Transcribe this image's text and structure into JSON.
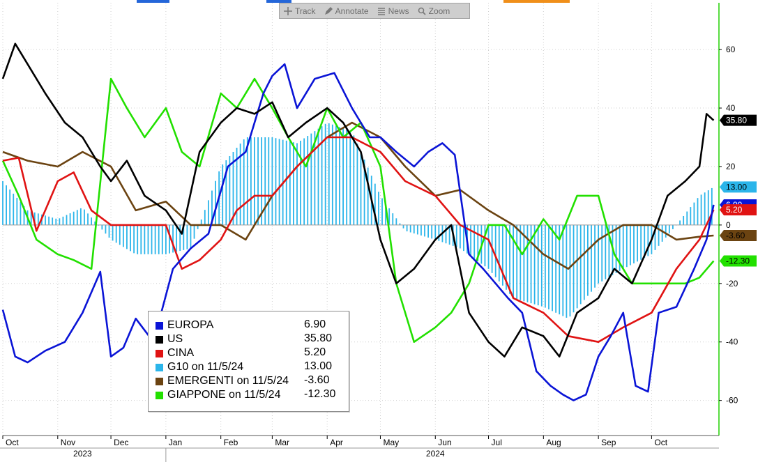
{
  "toolbar": {
    "buttons": [
      {
        "label": "Track",
        "icon": "crosshair-icon"
      },
      {
        "label": "Annotate",
        "icon": "pencil-icon"
      },
      {
        "label": "News",
        "icon": "news-icon"
      },
      {
        "label": "Zoom",
        "icon": "magnifier-icon"
      }
    ]
  },
  "chart_data": {
    "type": "line",
    "title": "",
    "xlabel": "",
    "ylabel": "",
    "ylim": [
      -72,
      76
    ],
    "y_ticks": [
      60,
      40,
      20,
      0,
      -20,
      -40,
      -60
    ],
    "y_tick_labels": [
      "60",
      "40",
      "20",
      "0",
      "-20",
      "-40",
      "-60"
    ],
    "x_start": "2023-10-01",
    "x_end": "2024-11-08",
    "x_ticks": [
      {
        "label": "Oct",
        "date": "2023-10-01"
      },
      {
        "label": "Nov",
        "date": "2023-11-01"
      },
      {
        "label": "Dec",
        "date": "2023-12-01"
      },
      {
        "label": "Jan",
        "date": "2024-01-01"
      },
      {
        "label": "Feb",
        "date": "2024-02-01"
      },
      {
        "label": "Mar",
        "date": "2024-03-01"
      },
      {
        "label": "Apr",
        "date": "2024-04-01"
      },
      {
        "label": "May",
        "date": "2024-05-01"
      },
      {
        "label": "Jun",
        "date": "2024-06-01"
      },
      {
        "label": "Jul",
        "date": "2024-07-01"
      },
      {
        "label": "Aug",
        "date": "2024-08-01"
      },
      {
        "label": "Sep",
        "date": "2024-09-01"
      },
      {
        "label": "Oct",
        "date": "2024-10-01"
      }
    ],
    "years": [
      {
        "label": "2023",
        "date": "2023-11-15"
      },
      {
        "label": "2024",
        "date": "2024-06-01"
      }
    ],
    "year_divider": "2024-01-01",
    "grid": true,
    "legend_position": "bottom-left",
    "series": [
      {
        "name": "EUROPA",
        "legend": "EUROPA",
        "value_label": "6.90",
        "last_value": 6.9,
        "color": "#0a14d6",
        "style": "line",
        "x": [
          "2023-10-01",
          "2023-10-08",
          "2023-10-15",
          "2023-10-25",
          "2023-11-05",
          "2023-11-15",
          "2023-11-25",
          "2023-12-01",
          "2023-12-08",
          "2023-12-15",
          "2023-12-25",
          "2024-01-05",
          "2024-01-15",
          "2024-01-25",
          "2024-02-05",
          "2024-02-15",
          "2024-02-25",
          "2024-03-01",
          "2024-03-08",
          "2024-03-15",
          "2024-03-25",
          "2024-04-05",
          "2024-04-15",
          "2024-04-25",
          "2024-05-01",
          "2024-05-10",
          "2024-05-20",
          "2024-05-28",
          "2024-06-05",
          "2024-06-12",
          "2024-06-20",
          "2024-06-28",
          "2024-07-05",
          "2024-07-12",
          "2024-07-20",
          "2024-07-28",
          "2024-08-05",
          "2024-08-12",
          "2024-08-18",
          "2024-08-25",
          "2024-09-01",
          "2024-09-08",
          "2024-09-15",
          "2024-09-22",
          "2024-09-29",
          "2024-10-05",
          "2024-10-15",
          "2024-10-25",
          "2024-11-01",
          "2024-11-05"
        ],
        "y": [
          -29,
          -45,
          -47,
          -43,
          -40,
          -30,
          -16,
          -45,
          -42,
          -32,
          -40,
          -15,
          -8,
          -3,
          20,
          25,
          45,
          51,
          55,
          40,
          50,
          52,
          40,
          30,
          30,
          25,
          20,
          25,
          28,
          24,
          -10,
          -15,
          -20,
          -25,
          -30,
          -50,
          -55,
          -58,
          -60,
          -58,
          -45,
          -38,
          -30,
          -55,
          -57,
          -30,
          -28,
          -15,
          -5,
          6.9
        ]
      },
      {
        "name": "US",
        "legend": "US",
        "value_label": "35.80",
        "last_value": 35.8,
        "color": "#000000",
        "style": "line",
        "x": [
          "2023-10-01",
          "2023-10-08",
          "2023-10-15",
          "2023-10-25",
          "2023-11-05",
          "2023-11-15",
          "2023-11-25",
          "2023-12-01",
          "2023-12-10",
          "2023-12-20",
          "2024-01-01",
          "2024-01-10",
          "2024-01-20",
          "2024-02-01",
          "2024-02-10",
          "2024-02-20",
          "2024-03-01",
          "2024-03-10",
          "2024-03-20",
          "2024-04-01",
          "2024-04-10",
          "2024-04-20",
          "2024-05-01",
          "2024-05-10",
          "2024-05-20",
          "2024-06-01",
          "2024-06-10",
          "2024-06-20",
          "2024-07-01",
          "2024-07-10",
          "2024-07-20",
          "2024-08-01",
          "2024-08-10",
          "2024-08-20",
          "2024-09-01",
          "2024-09-10",
          "2024-09-20",
          "2024-10-01",
          "2024-10-10",
          "2024-10-20",
          "2024-10-28",
          "2024-11-01",
          "2024-11-05"
        ],
        "y": [
          50,
          62,
          55,
          45,
          35,
          30,
          20,
          15,
          22,
          10,
          5,
          -3,
          25,
          35,
          40,
          38,
          42,
          30,
          35,
          40,
          35,
          25,
          -5,
          -20,
          -15,
          -5,
          0,
          -30,
          -40,
          -45,
          -35,
          -38,
          -45,
          -30,
          -25,
          -15,
          -20,
          -5,
          10,
          15,
          20,
          38,
          35.8
        ]
      },
      {
        "name": "CINA",
        "legend": "CINA",
        "value_label": "5.20",
        "last_value": 5.2,
        "color": "#e01313",
        "style": "line",
        "x": [
          "2023-10-01",
          "2023-10-10",
          "2023-10-20",
          "2023-11-01",
          "2023-11-10",
          "2023-11-20",
          "2023-12-01",
          "2023-12-10",
          "2023-12-20",
          "2024-01-01",
          "2024-01-10",
          "2024-01-20",
          "2024-02-01",
          "2024-02-10",
          "2024-02-20",
          "2024-03-01",
          "2024-03-15",
          "2024-04-01",
          "2024-04-15",
          "2024-05-01",
          "2024-05-15",
          "2024-06-01",
          "2024-06-15",
          "2024-07-01",
          "2024-07-15",
          "2024-08-01",
          "2024-08-15",
          "2024-09-01",
          "2024-09-15",
          "2024-10-01",
          "2024-10-15",
          "2024-10-28",
          "2024-11-05"
        ],
        "y": [
          22,
          23,
          -2,
          15,
          18,
          5,
          0,
          0,
          0,
          0,
          -15,
          -12,
          -5,
          5,
          10,
          10,
          20,
          30,
          30,
          25,
          15,
          10,
          0,
          -5,
          -25,
          -30,
          -38,
          -40,
          -35,
          -30,
          -15,
          -5,
          5.2
        ]
      },
      {
        "name": "G10 on 11/5/24",
        "legend": "G10 on 11/5/24",
        "value_label": "13.00",
        "last_value": 13.0,
        "color": "#2bb5ea",
        "style": "bars",
        "x": [
          "2023-10-01",
          "2023-10-15",
          "2023-11-01",
          "2023-11-15",
          "2023-12-01",
          "2023-12-15",
          "2024-01-01",
          "2024-01-15",
          "2024-02-01",
          "2024-02-15",
          "2024-03-01",
          "2024-03-15",
          "2024-04-01",
          "2024-04-15",
          "2024-05-01",
          "2024-05-15",
          "2024-06-01",
          "2024-06-15",
          "2024-07-01",
          "2024-07-15",
          "2024-08-01",
          "2024-08-15",
          "2024-09-01",
          "2024-09-15",
          "2024-10-01",
          "2024-10-15",
          "2024-10-28",
          "2024-11-05"
        ],
        "y": [
          15,
          5,
          2,
          6,
          -5,
          -10,
          -10,
          -8,
          20,
          30,
          30,
          28,
          35,
          32,
          10,
          -2,
          -5,
          -8,
          -15,
          -25,
          -28,
          -32,
          -20,
          -15,
          -10,
          0,
          10,
          13
        ]
      },
      {
        "name": "EMERGENTI on 11/5/24",
        "legend": "EMERGENTI on 11/5/24",
        "value_label": "-3.60",
        "last_value": -3.6,
        "color": "#6b4311",
        "style": "line",
        "x": [
          "2023-10-01",
          "2023-10-15",
          "2023-11-01",
          "2023-11-15",
          "2023-12-01",
          "2023-12-15",
          "2024-01-01",
          "2024-01-15",
          "2024-02-01",
          "2024-02-15",
          "2024-03-01",
          "2024-03-15",
          "2024-04-01",
          "2024-04-15",
          "2024-05-01",
          "2024-05-15",
          "2024-06-01",
          "2024-06-15",
          "2024-07-01",
          "2024-07-15",
          "2024-08-01",
          "2024-08-15",
          "2024-09-01",
          "2024-09-15",
          "2024-10-01",
          "2024-10-15",
          "2024-10-28",
          "2024-11-05"
        ],
        "y": [
          25,
          22,
          20,
          25,
          20,
          5,
          8,
          0,
          0,
          -5,
          10,
          20,
          30,
          35,
          30,
          20,
          10,
          12,
          5,
          0,
          -10,
          -15,
          -5,
          0,
          0,
          -5,
          -4,
          -3.6
        ]
      },
      {
        "name": "GIAPPONE on 11/5/24",
        "legend": "GIAPPONE on 11/5/24",
        "value_label": "-12.30",
        "last_value": -12.3,
        "color": "#22e000",
        "style": "line",
        "x": [
          "2023-10-01",
          "2023-10-10",
          "2023-10-20",
          "2023-11-01",
          "2023-11-10",
          "2023-11-20",
          "2023-12-01",
          "2023-12-10",
          "2023-12-20",
          "2024-01-01",
          "2024-01-10",
          "2024-01-20",
          "2024-02-01",
          "2024-02-10",
          "2024-02-20",
          "2024-03-01",
          "2024-03-10",
          "2024-03-20",
          "2024-04-01",
          "2024-04-10",
          "2024-04-20",
          "2024-05-01",
          "2024-05-10",
          "2024-05-20",
          "2024-06-01",
          "2024-06-10",
          "2024-06-20",
          "2024-07-01",
          "2024-07-10",
          "2024-07-20",
          "2024-08-01",
          "2024-08-10",
          "2024-08-20",
          "2024-09-01",
          "2024-09-10",
          "2024-09-20",
          "2024-10-01",
          "2024-10-10",
          "2024-10-20",
          "2024-10-28",
          "2024-11-05"
        ],
        "y": [
          22,
          10,
          -5,
          -10,
          -12,
          -15,
          50,
          40,
          30,
          40,
          25,
          20,
          45,
          40,
          50,
          40,
          30,
          20,
          40,
          30,
          35,
          20,
          -20,
          -40,
          -35,
          -30,
          -20,
          0,
          0,
          -10,
          2,
          -5,
          10,
          10,
          -10,
          -20,
          -20,
          -20,
          -20,
          -18,
          -12.3
        ]
      }
    ]
  }
}
